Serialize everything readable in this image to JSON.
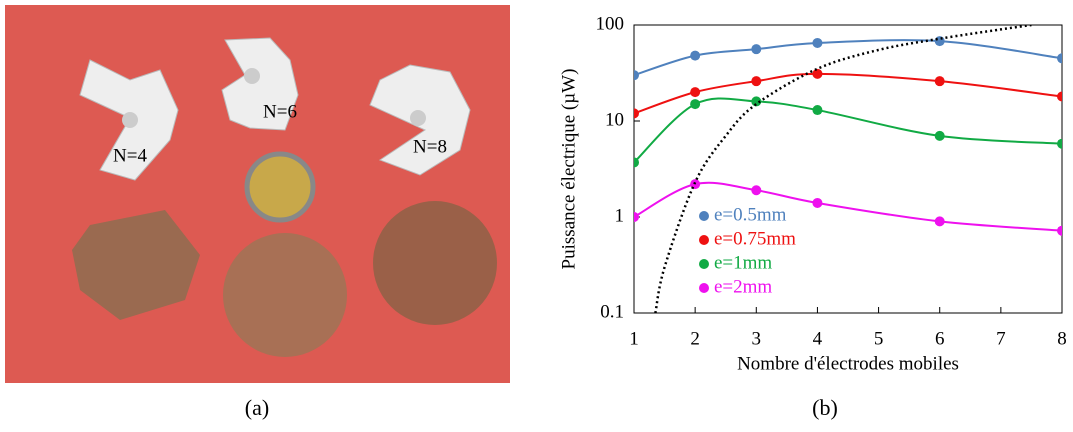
{
  "photo": {
    "labels": [
      "N=4",
      "N=6",
      "N=8"
    ]
  },
  "captions": [
    "(a)",
    "(b)"
  ],
  "chart_data": {
    "type": "line",
    "xlabel": "Nombre d'électrodes mobiles",
    "ylabel": "Puissance électrique (µW)",
    "x": [
      1,
      2,
      3,
      4,
      6,
      8
    ],
    "xlim": [
      1,
      8
    ],
    "xticks": [
      1,
      2,
      3,
      4,
      5,
      6,
      7,
      8
    ],
    "ylim": [
      0.1,
      100
    ],
    "yticks": [
      0.1,
      1,
      10,
      100
    ],
    "log_y": true,
    "legend": "lower left",
    "series": [
      {
        "name": "e=0.5mm",
        "color": "#4f81bd",
        "values": [
          30,
          48,
          56,
          65,
          68,
          45
        ]
      },
      {
        "name": "e=0.75mm",
        "color": "#ee1111",
        "values": [
          12,
          20,
          26,
          31,
          26,
          18
        ]
      },
      {
        "name": "e=1mm",
        "color": "#11aa44",
        "values": [
          3.7,
          15,
          16,
          13,
          7,
          5.8
        ]
      },
      {
        "name": "e=2mm",
        "color": "#ee11ee",
        "values": [
          1,
          2.2,
          1.9,
          1.4,
          0.9,
          0.72
        ]
      }
    ],
    "curve": {
      "color": "#000000",
      "x": [
        1.35,
        1.5,
        2,
        2.5,
        3,
        4,
        5,
        6,
        7,
        7.5
      ],
      "values": [
        0.1,
        0.3,
        2.3,
        7,
        15,
        35,
        55,
        72,
        90,
        100
      ]
    }
  }
}
